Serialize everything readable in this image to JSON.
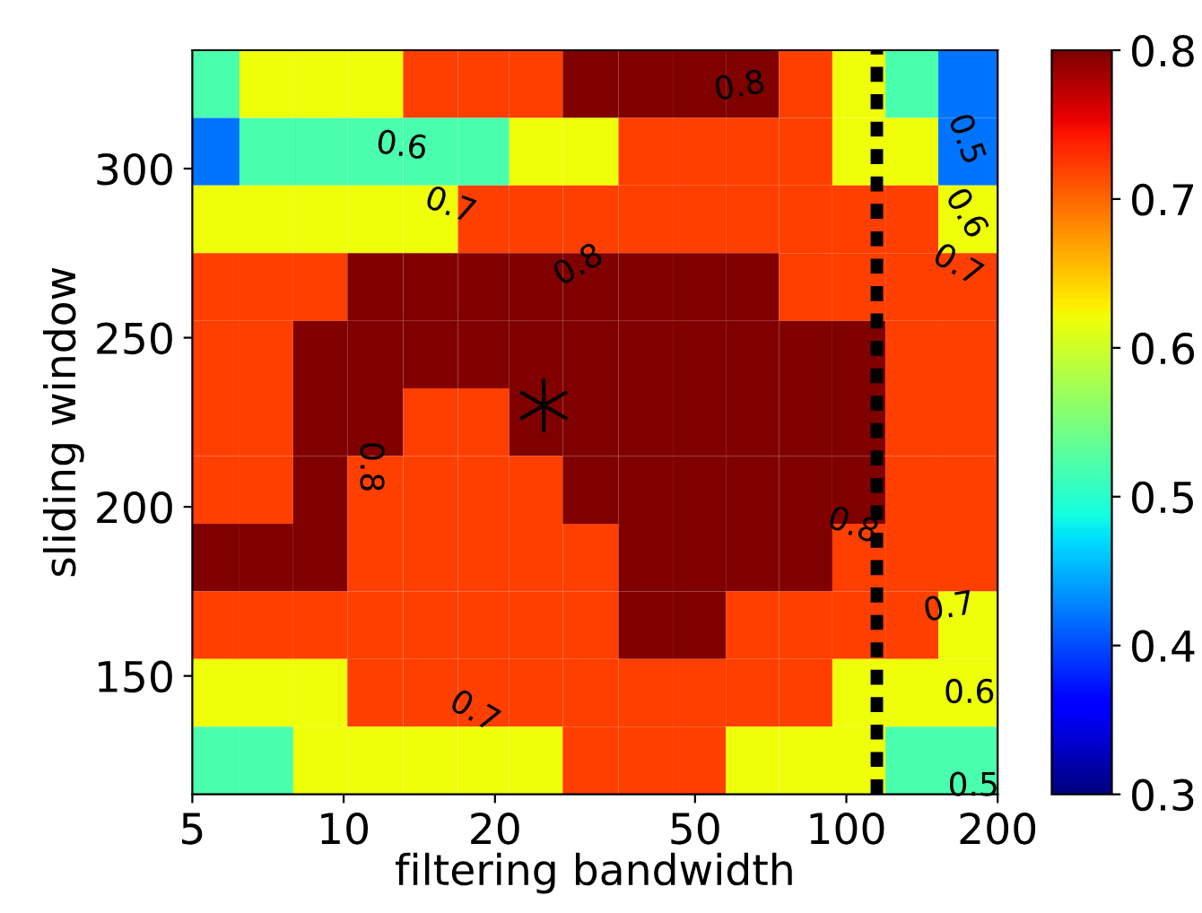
{
  "chart_data": {
    "type": "heatmap",
    "xlabel": "filtering bandwidth",
    "ylabel": "sliding window",
    "log": "x",
    "x": [
      5.5,
      7,
      9,
      11.5,
      15,
      19,
      24,
      31,
      40,
      51,
      65,
      83,
      106,
      135,
      172
    ],
    "y": [
      325,
      305,
      285,
      265,
      245,
      225,
      205,
      185,
      165,
      145,
      125
    ],
    "cells": [
      [
        0.52,
        0.62,
        0.62,
        0.62,
        0.72,
        0.72,
        0.72,
        0.8,
        0.8,
        0.8,
        0.8,
        0.72,
        0.62,
        0.52,
        0.42
      ],
      [
        0.42,
        0.52,
        0.52,
        0.52,
        0.52,
        0.52,
        0.62,
        0.62,
        0.72,
        0.72,
        0.72,
        0.72,
        0.62,
        0.62,
        0.42
      ],
      [
        0.62,
        0.62,
        0.62,
        0.62,
        0.62,
        0.72,
        0.72,
        0.72,
        0.72,
        0.72,
        0.72,
        0.72,
        0.72,
        0.72,
        0.62
      ],
      [
        0.72,
        0.72,
        0.72,
        0.8,
        0.8,
        0.8,
        0.8,
        0.8,
        0.8,
        0.8,
        0.8,
        0.72,
        0.72,
        0.72,
        0.72
      ],
      [
        0.72,
        0.72,
        0.8,
        0.8,
        0.8,
        0.8,
        0.8,
        0.8,
        0.8,
        0.8,
        0.8,
        0.8,
        0.8,
        0.72,
        0.72
      ],
      [
        0.72,
        0.72,
        0.8,
        0.8,
        0.72,
        0.72,
        0.8,
        0.8,
        0.8,
        0.8,
        0.8,
        0.8,
        0.8,
        0.72,
        0.72
      ],
      [
        0.72,
        0.72,
        0.8,
        0.72,
        0.72,
        0.72,
        0.72,
        0.8,
        0.8,
        0.8,
        0.8,
        0.8,
        0.8,
        0.72,
        0.72
      ],
      [
        0.8,
        0.8,
        0.8,
        0.72,
        0.72,
        0.72,
        0.72,
        0.72,
        0.8,
        0.8,
        0.8,
        0.8,
        0.72,
        0.72,
        0.72
      ],
      [
        0.72,
        0.72,
        0.72,
        0.72,
        0.72,
        0.72,
        0.72,
        0.72,
        0.8,
        0.8,
        0.72,
        0.72,
        0.72,
        0.72,
        0.62
      ],
      [
        0.62,
        0.62,
        0.62,
        0.72,
        0.72,
        0.72,
        0.72,
        0.72,
        0.72,
        0.72,
        0.72,
        0.72,
        0.62,
        0.62,
        0.62
      ],
      [
        0.52,
        0.52,
        0.62,
        0.62,
        0.62,
        0.62,
        0.62,
        0.72,
        0.72,
        0.72,
        0.62,
        0.62,
        0.62,
        0.52,
        0.52
      ]
    ],
    "clim": [
      0.3,
      0.8
    ],
    "cticks": [
      0.3,
      0.4,
      0.5,
      0.6,
      0.7,
      0.8
    ],
    "xlim": [
      5,
      200
    ],
    "xticks": [
      5,
      10,
      20,
      50,
      100,
      200
    ],
    "ylim": [
      115,
      335
    ],
    "yticks": [
      150,
      200,
      250,
      300
    ],
    "series": [
      {
        "type": "scatter",
        "x": [
          25
        ],
        "values": [
          230
        ],
        "color": "#000000",
        "marker": "cross"
      }
    ],
    "ref_lines": [
      {
        "axis": "x",
        "value": 115,
        "color": "#000000",
        "line_style": "dashed"
      }
    ],
    "annotations": [
      "0.8",
      "0.6",
      "0.7",
      "0.8",
      "0.8",
      "0.8",
      "0.7",
      "0.6",
      "0.7",
      "0.7",
      "0.6",
      "0.5",
      "0.5"
    ]
  }
}
